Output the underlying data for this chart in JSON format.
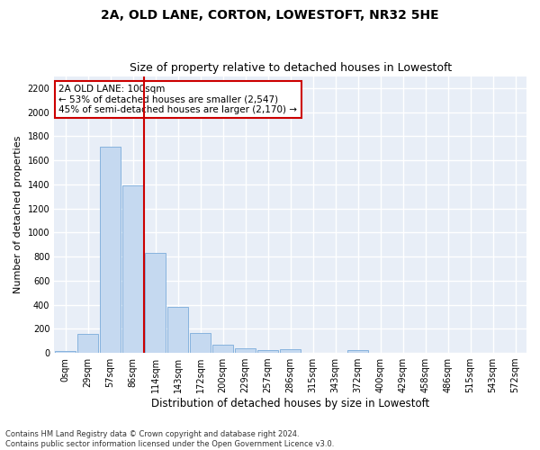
{
  "title": "2A, OLD LANE, CORTON, LOWESTOFT, NR32 5HE",
  "subtitle": "Size of property relative to detached houses in Lowestoft",
  "xlabel": "Distribution of detached houses by size in Lowestoft",
  "ylabel": "Number of detached properties",
  "bar_labels": [
    "0sqm",
    "29sqm",
    "57sqm",
    "86sqm",
    "114sqm",
    "143sqm",
    "172sqm",
    "200sqm",
    "229sqm",
    "257sqm",
    "286sqm",
    "315sqm",
    "343sqm",
    "372sqm",
    "400sqm",
    "429sqm",
    "458sqm",
    "486sqm",
    "515sqm",
    "543sqm",
    "572sqm"
  ],
  "bar_values": [
    15,
    155,
    1710,
    1395,
    830,
    385,
    165,
    70,
    35,
    25,
    30,
    0,
    0,
    20,
    0,
    0,
    0,
    0,
    0,
    0,
    0
  ],
  "bar_color": "#c5d9f0",
  "bar_edge_color": "#7aabdb",
  "ylim": [
    0,
    2300
  ],
  "yticks": [
    0,
    200,
    400,
    600,
    800,
    1000,
    1200,
    1400,
    1600,
    1800,
    2000,
    2200
  ],
  "vline_x_index": 3,
  "annotation_text": "2A OLD LANE: 100sqm\n← 53% of detached houses are smaller (2,547)\n45% of semi-detached houses are larger (2,170) →",
  "annotation_box_color": "#ffffff",
  "annotation_box_edge_color": "#cc0000",
  "vline_color": "#cc0000",
  "footer_text": "Contains HM Land Registry data © Crown copyright and database right 2024.\nContains public sector information licensed under the Open Government Licence v3.0.",
  "bg_color": "#e8eef7",
  "grid_color": "#ffffff",
  "title_fontsize": 10,
  "subtitle_fontsize": 9,
  "tick_fontsize": 7,
  "ylabel_fontsize": 8,
  "xlabel_fontsize": 8.5
}
